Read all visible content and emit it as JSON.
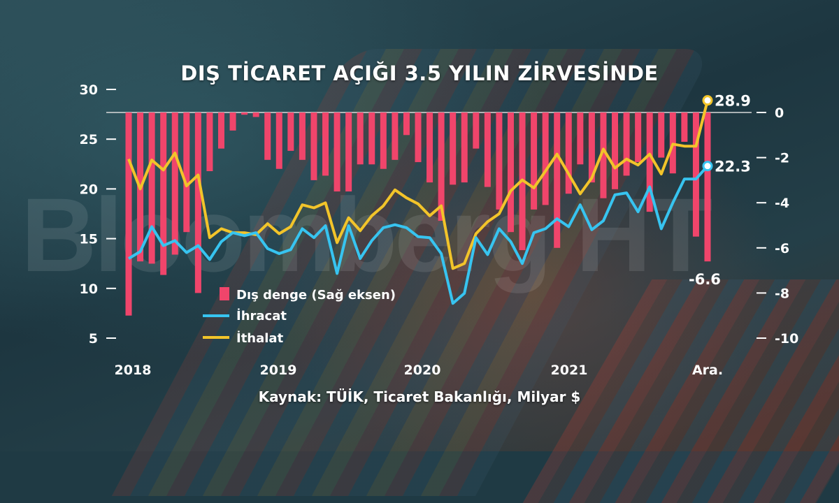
{
  "title": "DIŞ TİCARET AÇIĞI 3.5 YILIN ZİRVESİNDE",
  "source": "Kaynak: TÜİK, Ticaret Bakanlığı, Milyar $",
  "watermark": "Bloomberg HT",
  "colors": {
    "bar": "#f0456b",
    "exports": "#37c4f0",
    "imports": "#f2c42a",
    "text": "#ffffff"
  },
  "chart_data": {
    "type": "line",
    "x_labels": [
      "2018",
      "2019",
      "2020",
      "2021",
      "Ara."
    ],
    "left_axis": {
      "ticks": [
        5,
        10,
        15,
        20,
        25,
        30
      ],
      "range": [
        3,
        30.5
      ]
    },
    "right_axis": {
      "ticks": [
        0,
        -2,
        -4,
        -6,
        -8,
        -10
      ],
      "range": [
        -10.3,
        0.75
      ]
    },
    "legend": {
      "bar": "Dış denge (Sağ eksen)",
      "exports": "İhracat",
      "imports": "İthalat"
    },
    "labels": {
      "imports_last": "28.9",
      "exports_last": "22.3",
      "balance_last": "-6.6"
    },
    "series": [
      {
        "name": "İhracat",
        "values": [
          13.0,
          13.7,
          16.2,
          14.3,
          14.8,
          13.6,
          14.3,
          12.9,
          14.7,
          15.6,
          15.3,
          15.6,
          14.0,
          13.5,
          13.9,
          16.0,
          15.1,
          16.3,
          11.5,
          16.3,
          13.0,
          14.8,
          16.1,
          16.4,
          16.1,
          15.2,
          15.1,
          13.5,
          8.5,
          9.5,
          15.1,
          13.4,
          16.0,
          14.7,
          12.5,
          15.6,
          16.0,
          17.0,
          16.2,
          18.4,
          15.9,
          16.8,
          19.4,
          19.6,
          17.7,
          20.2,
          16.0,
          18.6,
          21.0,
          21.0,
          22.3
        ]
      },
      {
        "name": "İthalat",
        "values": [
          23.0,
          20.0,
          22.9,
          21.9,
          23.6,
          20.3,
          21.4,
          15.1,
          16.0,
          15.6,
          15.6,
          15.4,
          16.5,
          15.5,
          16.2,
          18.4,
          18.1,
          18.6,
          14.6,
          17.1,
          15.8,
          17.3,
          18.3,
          19.9,
          19.1,
          18.5,
          17.3,
          18.3,
          12.0,
          12.5,
          15.5,
          16.7,
          17.5,
          19.8,
          20.9,
          20.1,
          21.8,
          23.5,
          21.5,
          19.5,
          21.1,
          24.0,
          22.1,
          23.0,
          22.4,
          23.5,
          21.5,
          24.5,
          24.3,
          24.3,
          28.9
        ]
      },
      {
        "name": "Dış denge (Sağ eksen)",
        "values": [
          -9.0,
          -6.6,
          -6.7,
          -7.2,
          -6.3,
          -5.3,
          -8.0,
          -2.6,
          -1.6,
          -0.8,
          -0.1,
          -0.2,
          -2.1,
          -2.5,
          -1.7,
          -2.1,
          -3.0,
          -2.8,
          -3.5,
          -3.5,
          -2.3,
          -2.3,
          -2.5,
          -2.1,
          -1.0,
          -2.2,
          -3.1,
          -4.8,
          -3.2,
          -3.1,
          -1.6,
          -3.3,
          -4.3,
          -5.3,
          -6.1,
          -4.3,
          -4.1,
          -6.0,
          -3.6,
          -2.3,
          -3.1,
          -3.8,
          -3.4,
          -2.8,
          -2.2,
          -4.4,
          -2.0,
          -2.7,
          -1.3,
          -5.5,
          -6.6
        ]
      }
    ]
  }
}
